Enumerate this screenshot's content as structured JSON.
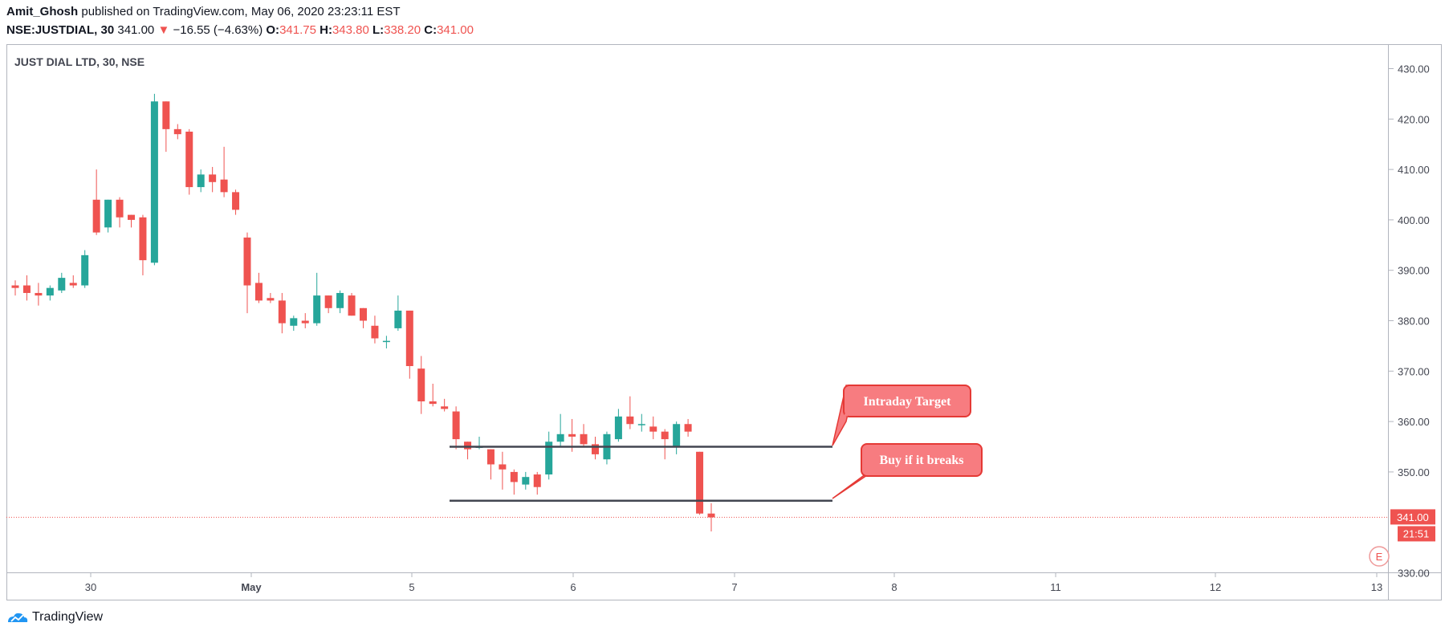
{
  "publish": {
    "author": "Amit_Ghosh",
    "text": "published on TradingView.com, May 06, 2020 23:23:11 EST"
  },
  "quote": {
    "symbol": "NSE:JUSTDIAL, 30",
    "last": "341.00",
    "change_arrow": "▼",
    "change": "−16.55 (−4.63%)",
    "o_label": "O:",
    "o": "341.75",
    "h_label": "H:",
    "h": "343.80",
    "l_label": "L:",
    "l": "338.20",
    "c_label": "C:",
    "c": "341.00"
  },
  "chart_title": "JUST DIAL LTD, 30, NSE",
  "colors": {
    "up": "#26a69a",
    "down": "#ef5350",
    "callout": "#f77c80",
    "callout_border": "#e53935",
    "grid_border": "#b2b5be",
    "text": "#131722",
    "axis_text": "#434651"
  },
  "price_axis": {
    "labels": [
      "430.00",
      "420.00",
      "410.00",
      "400.00",
      "390.00",
      "380.00",
      "370.00",
      "360.00",
      "350.00",
      "330.00"
    ],
    "last_price_label": "341.00",
    "countdown_label": "21:51",
    "e_badge": "E"
  },
  "time_axis": {
    "labels": [
      "30",
      "May",
      "5",
      "6",
      "7",
      "8",
      "11",
      "12",
      "13"
    ]
  },
  "annotations": {
    "target": "Intraday Target",
    "buy": "Buy if it breaks"
  },
  "footer": {
    "brand": "TradingView"
  },
  "chart_data": {
    "type": "candlestick",
    "title": "JUST DIAL LTD, 30, NSE",
    "ylim": [
      328,
      433
    ],
    "last_price": 341.0,
    "levels": [
      {
        "name": "Intraday Target",
        "price": 355.0
      },
      {
        "name": "Buy if it breaks",
        "price": 344.3
      }
    ],
    "candles": [
      [
        387.0,
        388.0,
        385.0,
        386.5
      ],
      [
        387.0,
        389.0,
        384.0,
        385.5
      ],
      [
        385.5,
        387.5,
        383.0,
        385.0
      ],
      [
        385.0,
        387.0,
        384.0,
        386.5
      ],
      [
        386.0,
        389.5,
        385.5,
        388.5
      ],
      [
        387.5,
        389.0,
        386.5,
        387.0
      ],
      [
        387.0,
        394.0,
        386.5,
        393.0
      ],
      [
        404.0,
        410.0,
        397.0,
        397.5
      ],
      [
        398.5,
        404.0,
        397.5,
        404.0
      ],
      [
        404.0,
        404.5,
        398.5,
        400.5
      ],
      [
        401.0,
        401.0,
        398.5,
        400.0
      ],
      [
        400.5,
        401.0,
        389.0,
        392.0
      ],
      [
        391.5,
        425.0,
        391.0,
        423.5
      ],
      [
        423.5,
        423.5,
        413.5,
        418.0
      ],
      [
        418.0,
        419.0,
        416.0,
        417.0
      ],
      [
        417.5,
        418.0,
        405.0,
        406.5
      ],
      [
        406.5,
        410.0,
        405.5,
        409.0
      ],
      [
        409.0,
        410.5,
        405.5,
        407.5
      ],
      [
        408.0,
        414.5,
        404.5,
        405.5
      ],
      [
        405.5,
        406.0,
        401.0,
        402.0
      ],
      [
        396.5,
        397.5,
        381.5,
        387.0
      ],
      [
        387.5,
        389.5,
        383.5,
        384.0
      ],
      [
        384.5,
        385.5,
        383.5,
        384.0
      ],
      [
        384.0,
        385.5,
        377.5,
        379.5
      ],
      [
        379.0,
        381.0,
        378.0,
        380.5
      ],
      [
        380.0,
        381.5,
        378.5,
        379.5
      ],
      [
        379.5,
        389.5,
        379.0,
        385.0
      ],
      [
        385.0,
        385.0,
        381.5,
        382.5
      ],
      [
        382.5,
        386.0,
        381.5,
        385.5
      ],
      [
        385.0,
        385.5,
        381.0,
        381.0
      ],
      [
        382.5,
        382.5,
        378.5,
        380.0
      ],
      [
        379.0,
        381.0,
        375.5,
        376.5
      ],
      [
        376.0,
        377.0,
        374.5,
        376.0
      ],
      [
        378.5,
        385.0,
        378.0,
        382.0
      ],
      [
        382.0,
        382.0,
        368.5,
        371.0
      ],
      [
        370.5,
        373.0,
        361.5,
        364.0
      ],
      [
        364.0,
        367.5,
        363.0,
        363.5
      ],
      [
        363.0,
        364.5,
        362.0,
        362.5
      ],
      [
        362.0,
        363.0,
        354.5,
        356.5
      ],
      [
        356.0,
        356.0,
        352.5,
        354.5
      ],
      [
        355.0,
        357.0,
        354.5,
        355.0
      ],
      [
        354.5,
        354.5,
        348.5,
        351.5
      ],
      [
        351.5,
        354.0,
        346.5,
        350.5
      ],
      [
        350.0,
        350.5,
        345.5,
        348.0
      ],
      [
        347.5,
        350.0,
        346.5,
        349.0
      ],
      [
        349.5,
        350.0,
        345.5,
        347.0
      ],
      [
        349.5,
        358.0,
        348.5,
        356.0
      ],
      [
        356.0,
        361.5,
        355.0,
        357.5
      ],
      [
        357.5,
        360.5,
        354.0,
        357.0
      ],
      [
        357.5,
        359.5,
        355.0,
        355.5
      ],
      [
        355.5,
        357.0,
        352.5,
        353.5
      ],
      [
        352.5,
        358.0,
        351.5,
        357.5
      ],
      [
        356.5,
        362.5,
        356.0,
        361.0
      ],
      [
        361.0,
        365.0,
        358.5,
        359.5
      ],
      [
        359.5,
        361.5,
        358.0,
        359.5
      ],
      [
        359.0,
        361.0,
        356.5,
        358.0
      ],
      [
        358.0,
        358.5,
        352.5,
        356.5
      ],
      [
        355.0,
        360.0,
        353.5,
        359.5
      ],
      [
        359.5,
        360.5,
        357.0,
        358.0
      ],
      [
        354.0,
        354.0,
        341.5,
        341.75
      ],
      [
        341.75,
        343.8,
        338.2,
        341.0
      ]
    ]
  }
}
